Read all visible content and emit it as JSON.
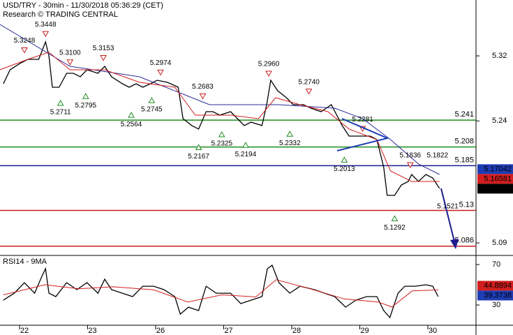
{
  "chart_data": [
    {
      "type": "line",
      "title": "USD/TRY - 30min - 11/30/2018 05:36:29 (CET)",
      "subtitle": "Research © TRADING CENTRAL",
      "xlim": [
        -0.359,
        6.636
      ],
      "ylim": [
        5.0755,
        5.3887
      ],
      "yticks": [
        5.32,
        5.24,
        5.09
      ],
      "series": [
        {
          "color": "#000000",
          "x": [
            -0.31,
            -0.21,
            -0.05,
            0.05,
            0.21,
            0.31,
            0.36,
            0.41,
            0.51,
            0.62,
            0.72,
            0.82,
            0.92,
            1.08,
            1.18,
            1.28,
            1.44,
            1.54,
            1.64,
            1.74,
            1.85,
            1.95,
            2.1,
            2.26,
            2.33,
            2.46,
            2.56,
            2.67,
            2.77,
            2.87,
            3.03,
            3.13,
            3.23,
            3.33,
            3.49,
            3.56,
            3.62,
            3.72,
            3.85,
            3.95,
            4.1,
            4.21,
            4.36,
            4.51,
            4.67,
            4.77,
            4.92,
            5.08,
            5.18,
            5.28,
            5.33,
            5.44,
            5.54,
            5.64,
            5.69,
            5.79,
            5.9,
            6.0,
            6.1
          ],
          "values": [
            5.2857,
            5.3029,
            5.3115,
            5.3158,
            5.3158,
            5.3372,
            5.3201,
            5.2814,
            5.2814,
            5.2986,
            5.2986,
            5.2943,
            5.3029,
            5.2986,
            5.3072,
            5.2943,
            5.2857,
            5.2814,
            5.2857,
            5.2814,
            5.2857,
            5.29,
            5.2875,
            5.2814,
            5.2428,
            5.2343,
            5.23,
            5.2514,
            5.2514,
            5.2471,
            5.2514,
            5.2428,
            5.2343,
            5.2385,
            5.2343,
            5.26,
            5.29,
            5.2772,
            5.2686,
            5.26,
            5.26,
            5.2557,
            5.2514,
            5.26,
            5.2343,
            5.2214,
            5.2214,
            5.2214,
            5.2171,
            5.1828,
            5.1485,
            5.1485,
            5.1613,
            5.1656,
            5.1742,
            5.1656,
            5.1742,
            5.1699,
            5.157
          ]
        },
        {
          "color": "#2b2b9a",
          "x": [
            -0.36,
            0.67,
            1.69,
            2.72,
            3.74,
            4.56,
            4.97,
            5.38,
            5.79,
            6.1
          ],
          "values": [
            5.3587,
            5.3072,
            5.2943,
            5.26,
            5.26,
            5.2557,
            5.2428,
            5.2171,
            5.1871,
            5.1742
          ]
        },
        {
          "color": "#d21e1e",
          "x": [
            -0.36,
            0.05,
            0.36,
            0.67,
            1.18,
            1.69,
            2.21,
            2.51,
            3.03,
            3.44,
            3.69,
            4.05,
            4.46,
            4.77,
            5.18,
            5.38,
            5.69,
            6.1
          ],
          "values": [
            5.3029,
            5.3158,
            5.3244,
            5.3029,
            5.3029,
            5.2875,
            5.2814,
            5.2471,
            5.2471,
            5.2428,
            5.2686,
            5.26,
            5.2514,
            5.23,
            5.2171,
            5.1785,
            5.1656,
            5.1656
          ]
        }
      ],
      "levels": [
        {
          "value": 5.241,
          "color": "#1e8c1e"
        },
        {
          "value": 5.208,
          "color": "#1e8c1e"
        },
        {
          "value": 5.185,
          "color": "#1c1c8c"
        },
        {
          "value": 5.13,
          "color": "#c81e1e"
        },
        {
          "value": 5.086,
          "color": "#c81e1e"
        }
      ],
      "markers": [
        {
          "kind": "down",
          "x": 0.0,
          "value": 5.3248,
          "label": "5.3248"
        },
        {
          "kind": "down",
          "x": 0.31,
          "value": 5.3448,
          "label": "5.3448"
        },
        {
          "kind": "down",
          "x": 0.67,
          "value": 5.31,
          "label": "5.3100"
        },
        {
          "kind": "down",
          "x": 1.16,
          "value": 5.3153,
          "label": "5.3153"
        },
        {
          "kind": "down",
          "x": 2.0,
          "value": 5.2974,
          "label": "5.2974"
        },
        {
          "kind": "down",
          "x": 2.62,
          "value": 5.2683,
          "label": "5.2683"
        },
        {
          "kind": "down",
          "x": 3.59,
          "value": 5.296,
          "label": "5.2960"
        },
        {
          "kind": "down",
          "x": 4.18,
          "value": 5.274,
          "label": "5.2740"
        },
        {
          "kind": "down",
          "x": 4.97,
          "value": 5.2281,
          "label": "5.2281"
        },
        {
          "kind": "down",
          "x": 5.67,
          "value": 5.1836,
          "label": "5.1836"
        },
        {
          "kind": "up",
          "x": 0.53,
          "value": 5.2711,
          "label": "5.2711"
        },
        {
          "kind": "up",
          "x": 0.9,
          "value": 5.2795,
          "label": "5.2795"
        },
        {
          "kind": "up",
          "x": 1.57,
          "value": 5.2564,
          "label": "5.2564"
        },
        {
          "kind": "up",
          "x": 1.87,
          "value": 5.2745,
          "label": "5.2745"
        },
        {
          "kind": "up",
          "x": 2.56,
          "value": 5.2167,
          "label": "5.2167"
        },
        {
          "kind": "up",
          "x": 2.9,
          "value": 5.2325,
          "label": "5.2325"
        },
        {
          "kind": "up",
          "x": 3.25,
          "value": 5.2194,
          "label": "5.2194"
        },
        {
          "kind": "up",
          "x": 3.9,
          "value": 5.2332,
          "label": "5.2332"
        },
        {
          "kind": "up",
          "x": 4.7,
          "value": 5.2013,
          "label": "5.2013"
        },
        {
          "kind": "up",
          "x": 5.44,
          "value": 5.1292,
          "label": "5.1292"
        },
        {
          "kind": "text-above",
          "x": 6.07,
          "value": 5.1822,
          "label": "5.1822"
        },
        {
          "kind": "text-below",
          "x": 6.22,
          "value": 5.1521,
          "label": "5.1521"
        }
      ],
      "price_tags": [
        {
          "value": 5.17042,
          "color": "#1e3cb4"
        },
        {
          "value": 5.16581,
          "color": "#d21e1e"
        },
        {
          "value": 5.1567,
          "color": "#000000"
        }
      ]
    },
    {
      "type": "line",
      "title": "RSI14 - 9MA",
      "xlim": [
        -0.359,
        6.636
      ],
      "ylim": [
        10.7,
        78.3
      ],
      "xticks": [
        {
          "value": 0,
          "label": "22"
        },
        {
          "value": 1,
          "label": "23"
        },
        {
          "value": 2,
          "label": "26"
        },
        {
          "value": 3,
          "label": "27"
        },
        {
          "value": 4,
          "label": "28"
        },
        {
          "value": 5,
          "label": "29"
        },
        {
          "value": 6,
          "label": "30"
        }
      ],
      "yticks": [
        70,
        30
      ],
      "series": [
        {
          "color": "#000000",
          "x": [
            -0.31,
            -0.15,
            0,
            0.15,
            0.26,
            0.31,
            0.36,
            0.46,
            0.62,
            0.77,
            0.92,
            1.08,
            1.18,
            1.28,
            1.44,
            1.59,
            1.74,
            1.9,
            2.05,
            2.21,
            2.29,
            2.41,
            2.56,
            2.67,
            2.82,
            3.03,
            3.18,
            3.33,
            3.49,
            3.57,
            3.64,
            3.74,
            3.9,
            4.05,
            4.26,
            4.41,
            4.56,
            4.72,
            4.87,
            5.03,
            5.18,
            5.28,
            5.37,
            5.49,
            5.59,
            5.74,
            5.9,
            6.0,
            6.08
          ],
          "values": [
            34.8,
            41.7,
            52.1,
            41.7,
            59.0,
            65.9,
            41.7,
            38.3,
            52.1,
            45.2,
            52.1,
            41.7,
            55.5,
            45.2,
            41.7,
            38.3,
            48.6,
            48.6,
            45.2,
            38.3,
            21.0,
            27.9,
            24.5,
            48.6,
            41.7,
            41.7,
            31.4,
            34.8,
            38.3,
            65.9,
            69.3,
            52.1,
            41.7,
            48.6,
            45.2,
            41.7,
            38.3,
            27.9,
            34.8,
            38.3,
            38.3,
            24.5,
            17.6,
            41.7,
            48.6,
            48.6,
            50.0,
            48.6,
            38.3
          ]
        },
        {
          "color": "#d21e1e",
          "x": [
            -0.31,
            0.3,
            0.8,
            1.3,
            1.9,
            2.4,
            2.9,
            3.4,
            3.7,
            4.2,
            4.7,
            5.2,
            5.4,
            5.7,
            6.08
          ],
          "values": [
            40,
            50,
            46,
            48,
            45,
            33,
            40,
            38,
            55,
            46,
            36,
            33,
            28,
            44,
            44.9
          ]
        }
      ],
      "price_tags": [
        {
          "value": 44.8894,
          "color": "#d21e1e"
        },
        {
          "value": 39.3738,
          "color": "#1e3cb4"
        }
      ]
    }
  ]
}
